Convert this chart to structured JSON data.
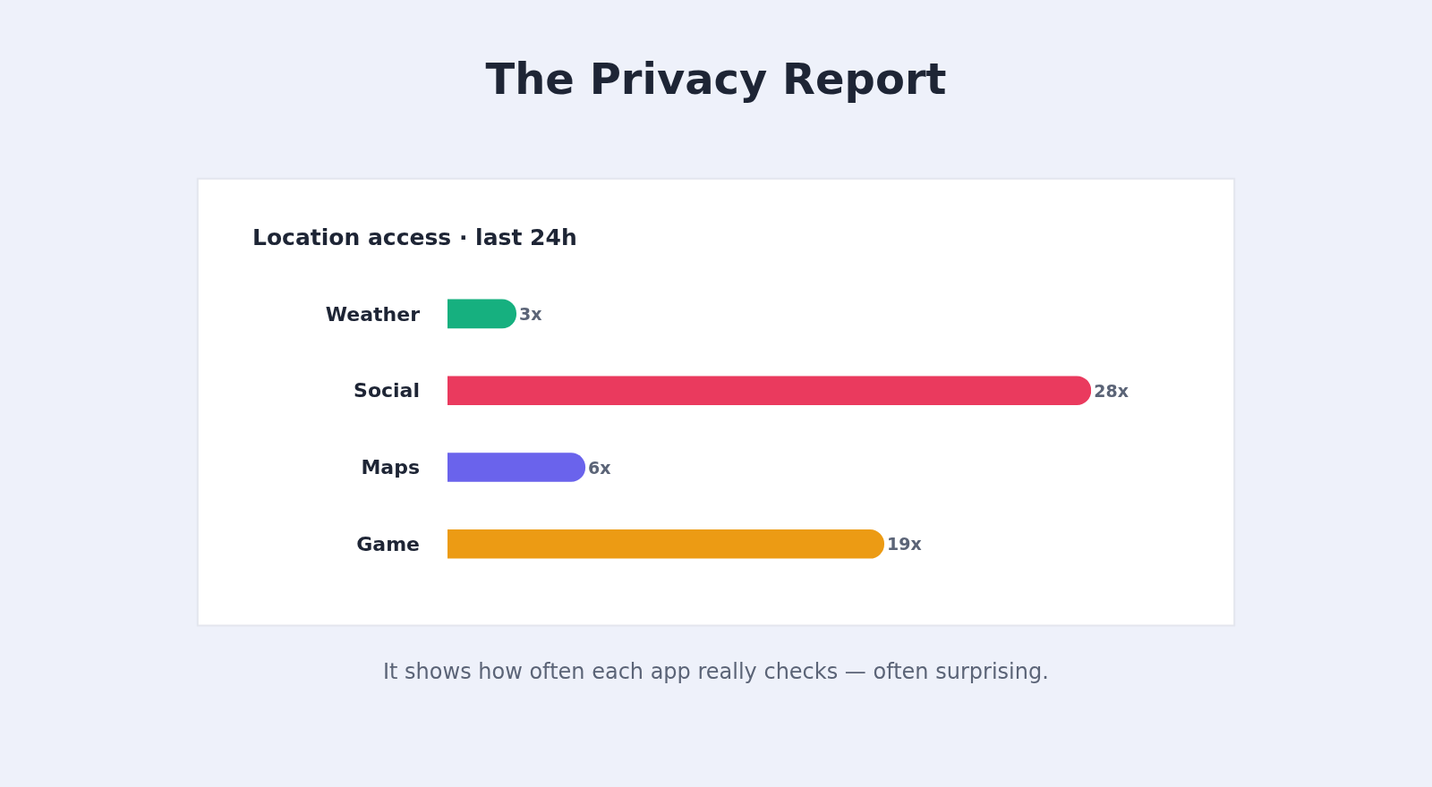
{
  "chart_data": {
    "type": "bar",
    "orientation": "horizontal",
    "title": "The Privacy Report",
    "subtitle": "Location access · last 24h",
    "categories": [
      "Weather",
      "Social",
      "Maps",
      "Game"
    ],
    "values": [
      3,
      28,
      6,
      19
    ],
    "colors": [
      "#16b07f",
      "#ea3a5e",
      "#6a63ec",
      "#ec9b14"
    ],
    "value_labels": [
      "3x",
      "28x",
      "6x",
      "19x"
    ],
    "annotations": [
      "It shows how often each app really checks — often surprising."
    ],
    "tick_labels": "y"
  }
}
